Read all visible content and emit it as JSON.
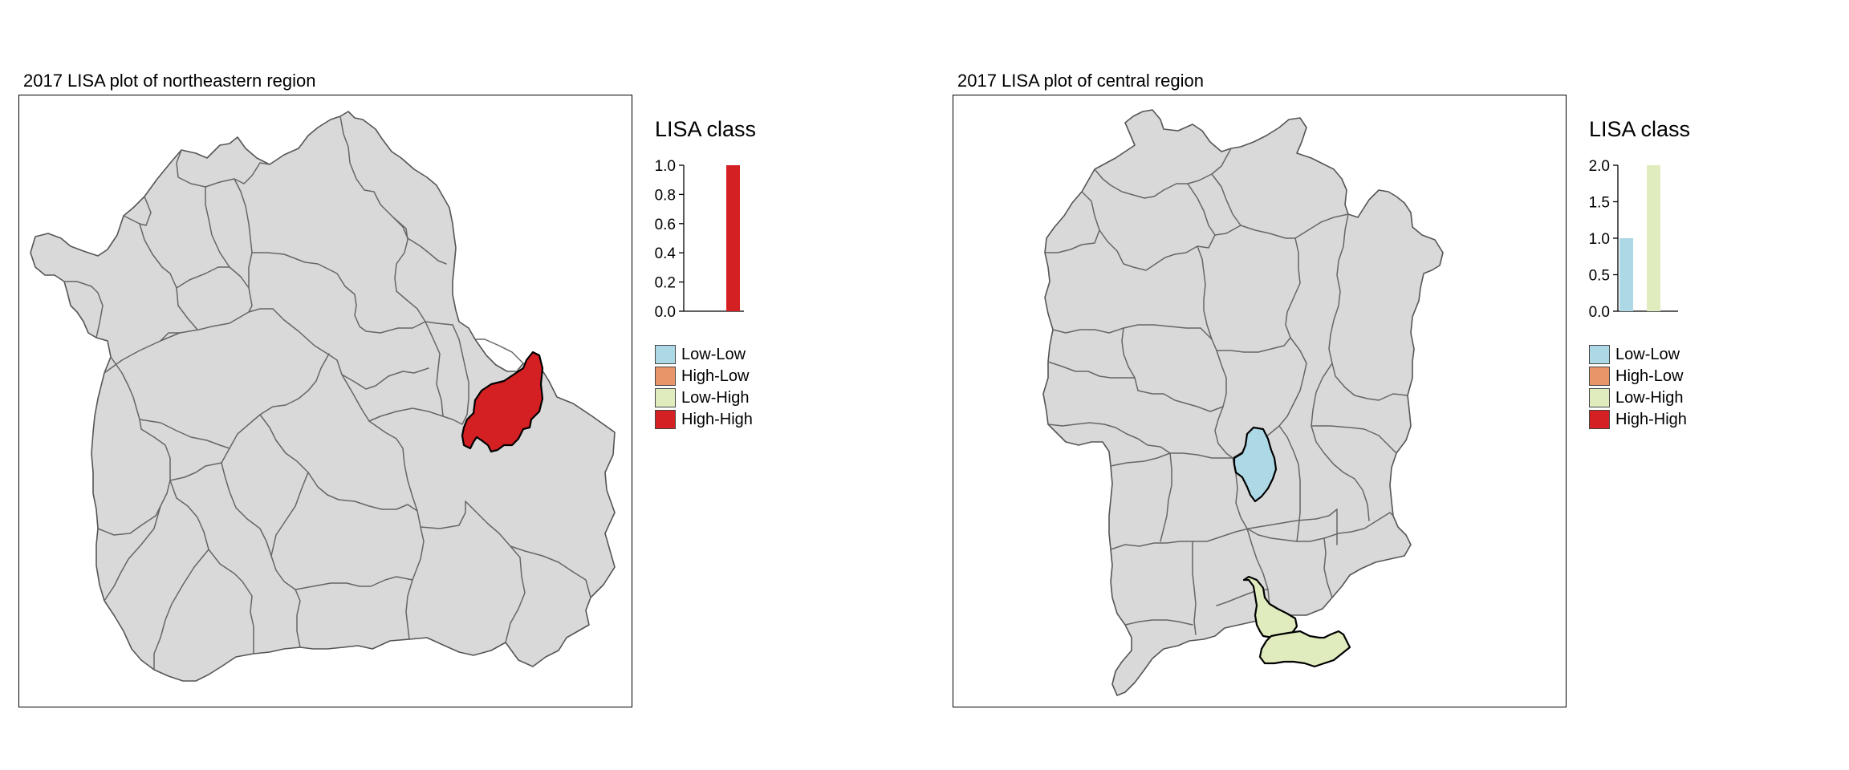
{
  "panels": [
    {
      "title": "2017 LISA plot of northeastern region",
      "legend": {
        "title": "LISA class",
        "histogram": {
          "type": "bar",
          "ylim": [
            0,
            1.0
          ],
          "ticks": [
            "0.0",
            "0.2",
            "0.4",
            "0.6",
            "0.8",
            "1.0"
          ],
          "tick_values": [
            0,
            0.2,
            0.4,
            0.6,
            0.8,
            1.0
          ],
          "bars": [
            {
              "category": "Low-Low",
              "value": 0
            },
            {
              "category": "High-Low",
              "value": 0
            },
            {
              "category": "Low-High",
              "value": 0
            },
            {
              "category": "High-High",
              "value": 1
            }
          ]
        },
        "classes": [
          {
            "label": "Low-Low",
            "color": "#add8e6"
          },
          {
            "label": "High-Low",
            "color": "#e9956a"
          },
          {
            "label": "Low-High",
            "color": "#e0ecbd"
          },
          {
            "label": "High-High",
            "color": "#d41f23"
          }
        ]
      },
      "highlighted_regions": [
        {
          "class": "High-High",
          "color": "#d41f23"
        }
      ]
    },
    {
      "title": "2017 LISA plot of central region",
      "legend": {
        "title": "LISA class",
        "histogram": {
          "type": "bar",
          "ylim": [
            0,
            2.0
          ],
          "ticks": [
            "0.0",
            "0.5",
            "1.0",
            "1.5",
            "2.0"
          ],
          "tick_values": [
            0,
            0.5,
            1.0,
            1.5,
            2.0
          ],
          "bars": [
            {
              "category": "Low-Low",
              "value": 1
            },
            {
              "category": "High-Low",
              "value": 0
            },
            {
              "category": "Low-High",
              "value": 2
            },
            {
              "category": "High-High",
              "value": 0
            }
          ]
        },
        "classes": [
          {
            "label": "Low-Low",
            "color": "#add8e6"
          },
          {
            "label": "High-Low",
            "color": "#e9956a"
          },
          {
            "label": "Low-High",
            "color": "#e0ecbd"
          },
          {
            "label": "High-High",
            "color": "#d41f23"
          }
        ]
      },
      "highlighted_regions": [
        {
          "class": "Low-Low",
          "color": "#add8e6"
        },
        {
          "class": "Low-High",
          "color": "#e0ecbd"
        },
        {
          "class": "Low-High",
          "color": "#e0ecbd"
        }
      ]
    }
  ],
  "base_region_color": "#d9d9d9"
}
